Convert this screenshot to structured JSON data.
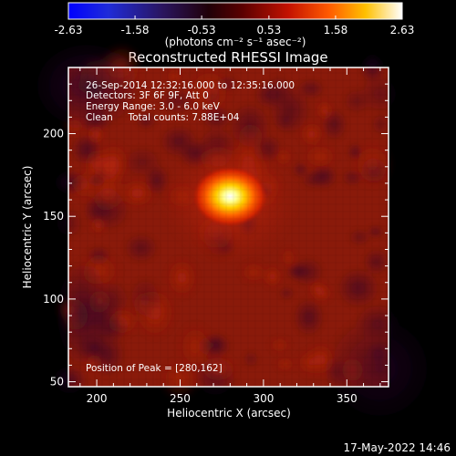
{
  "chart_data": {
    "type": "heatmap",
    "title": "Reconstructed RHESSI Image",
    "xlabel": "Heliocentric X (arcsec)",
    "ylabel": "Heliocentric Y (arcsec)",
    "xlim": [
      183,
      375
    ],
    "ylim": [
      47,
      240
    ],
    "xticks": [
      "200",
      "250",
      "300",
      "350"
    ],
    "xtick_values": [
      200,
      250,
      300,
      350
    ],
    "yticks": [
      "50",
      "100",
      "150",
      "200"
    ],
    "ytick_values": [
      50,
      100,
      150,
      200
    ],
    "colorbar": {
      "min": -2.63,
      "max": 2.63,
      "ticks": [
        "-2.63",
        "-1.58",
        "-0.53",
        "0.53",
        "1.58",
        "2.63"
      ],
      "tick_values": [
        -2.63,
        -1.58,
        -0.53,
        0.53,
        1.58,
        2.63
      ],
      "unit_label": "(photons cm⁻² s⁻¹ asec⁻²)",
      "colormap": "blue-black-red-yellow-white"
    },
    "annotations": [
      "26-Sep-2014 12:32:16.000 to 12:35:16.000",
      "Detectors: 3F 6F 9F, Att 0",
      "Energy Range: 3.0 - 6.0 keV",
      "Clean     Total counts: 7.88E+04"
    ],
    "peak_label": "Position of Peak = [280,162]",
    "sources": [
      {
        "x": 280,
        "y": 162,
        "peak": 2.63,
        "width": 7
      }
    ]
  },
  "footer": {
    "timestamp": "17-May-2022 14:46"
  },
  "colors": {
    "background": "#000000",
    "foreground": "#ffffff",
    "image_base": "#8b1a0a",
    "peak": "#ffffff"
  }
}
